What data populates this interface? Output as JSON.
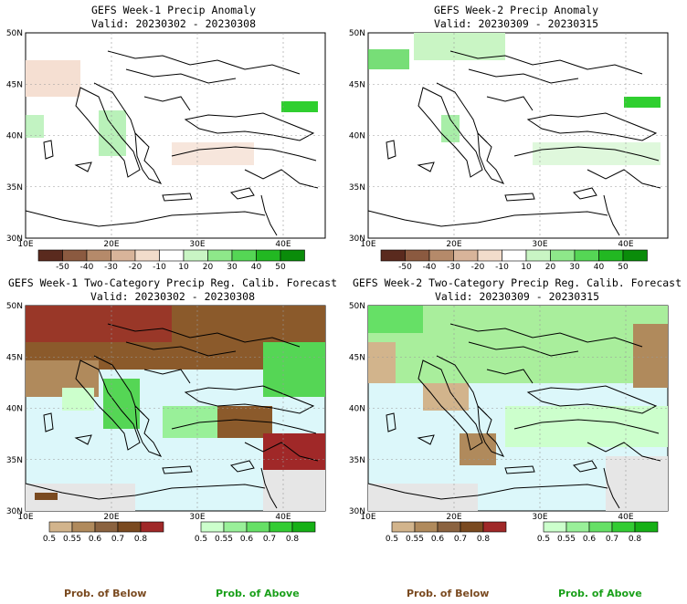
{
  "panels": [
    {
      "title": "GEFS Week-1 Precip Anomaly",
      "valid": "Valid: 20230302 - 20230308"
    },
    {
      "title": "GEFS Week-2 Precip Anomaly",
      "valid": "Valid: 20230309 - 20230315"
    },
    {
      "title": "GEFS Week-1 Two-Category Precip Reg. Calib. Forecast",
      "valid": "Valid: 20230302 - 20230308"
    },
    {
      "title": "GEFS Week-2 Two-Category Precip Reg. Calib. Forecast",
      "valid": "Valid: 20230309 - 20230315"
    }
  ],
  "lat_labels": [
    "30N",
    "35N",
    "40N",
    "45N",
    "50N"
  ],
  "lon_labels": [
    "10E",
    "20E",
    "30E",
    "40E"
  ],
  "anomaly_colorbar": {
    "ticks": [
      "-50",
      "-40",
      "-30",
      "-20",
      "-10",
      "10",
      "20",
      "30",
      "40",
      "50"
    ],
    "colors": [
      "#5a2a1e",
      "#8b5a40",
      "#b58a6a",
      "#d8b49a",
      "#f2dccb",
      "#ffffff",
      "#c9f5c4",
      "#8ee88a",
      "#55d655",
      "#22b822",
      "#0a8c0a"
    ]
  },
  "prob_colorbar_below": {
    "ticks": [
      "0.5",
      "0.55",
      "0.6",
      "0.7",
      "0.8"
    ],
    "colors": [
      "#d2b48c",
      "#b08a5c",
      "#8b6340",
      "#7a4a20",
      "#a02828"
    ]
  },
  "prob_colorbar_above": {
    "ticks": [
      "0.5",
      "0.55",
      "0.6",
      "0.7",
      "0.8"
    ],
    "colors": [
      "#ccffcc",
      "#99f099",
      "#66e066",
      "#33cc33",
      "#16b016"
    ]
  },
  "legend": {
    "below": "Prob. of Below",
    "above": "Prob. of Above"
  },
  "colors": {
    "below_text": "#7a4a20",
    "above_text": "#1aa01a",
    "sea": "#dcf7fa",
    "nodata": "#e6e6e6"
  }
}
